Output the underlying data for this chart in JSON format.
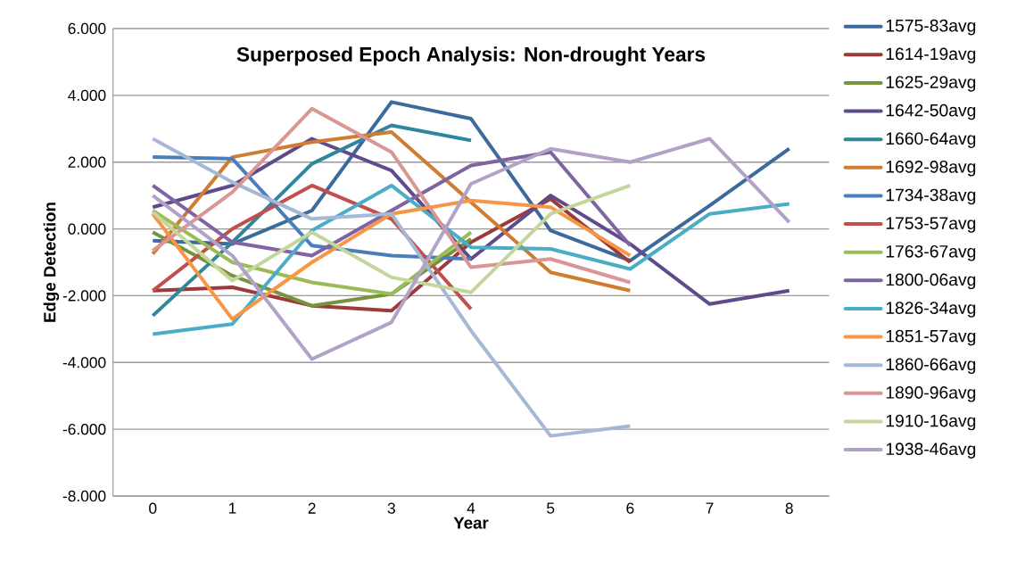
{
  "chart_data": {
    "type": "line",
    "title": "Superposed Epoch Analysis: Non-drought Years",
    "xlabel": "Year",
    "ylabel": "Edge Detection",
    "categories": [
      "0",
      "1",
      "2",
      "3",
      "4",
      "5",
      "6",
      "7",
      "8"
    ],
    "ylim": [
      -8,
      6
    ],
    "yticks": [
      {
        "value": -8,
        "label": "-8.000"
      },
      {
        "value": -6,
        "label": "-6.000"
      },
      {
        "value": -4,
        "label": "-4.000"
      },
      {
        "value": -2,
        "label": "-2.000"
      },
      {
        "value": 0,
        "label": "0.000"
      },
      {
        "value": 2,
        "label": "2.000"
      },
      {
        "value": 4,
        "label": "4.000"
      },
      {
        "value": 6,
        "label": "6.000"
      }
    ],
    "grid": "y",
    "legend": "right",
    "series": [
      {
        "name": "1575-83avg",
        "color": "#3d6a9c",
        "values": [
          -0.35,
          -0.45,
          0.55,
          3.8,
          3.3,
          -0.05,
          -0.95,
          0.7,
          2.4
        ]
      },
      {
        "name": "1614-19avg",
        "color": "#9b3b3a",
        "values": [
          -1.85,
          -1.75,
          -2.3,
          -2.45,
          -0.4,
          0.9,
          -1.0,
          null,
          null
        ]
      },
      {
        "name": "1625-29avg",
        "color": "#77933c",
        "values": [
          -0.1,
          -1.4,
          -2.3,
          -1.95,
          -0.3,
          null,
          null,
          null,
          null
        ]
      },
      {
        "name": "1642-50avg",
        "color": "#5f4b8b",
        "values": [
          0.65,
          1.3,
          2.7,
          1.75,
          -0.9,
          1.0,
          -0.45,
          -2.25,
          -1.85
        ]
      },
      {
        "name": "1660-64avg",
        "color": "#31859c",
        "values": [
          -2.6,
          -0.4,
          1.95,
          3.1,
          2.65,
          null,
          null,
          null,
          null
        ]
      },
      {
        "name": "1692-98avg",
        "color": "#d07d32",
        "values": [
          -0.75,
          2.15,
          2.6,
          2.9,
          0.8,
          -1.3,
          -1.85,
          null,
          null
        ]
      },
      {
        "name": "1734-38avg",
        "color": "#4a7ebb",
        "values": [
          2.15,
          2.1,
          -0.5,
          -0.8,
          -0.9,
          null,
          null,
          null,
          null
        ]
      },
      {
        "name": "1753-57avg",
        "color": "#c0504d",
        "values": [
          -1.85,
          0.0,
          1.3,
          0.3,
          -2.4,
          null,
          null,
          null,
          null
        ]
      },
      {
        "name": "1763-67avg",
        "color": "#9bbb59",
        "values": [
          0.55,
          -1.0,
          -1.6,
          -1.95,
          -0.1,
          null,
          null,
          null,
          null
        ]
      },
      {
        "name": "1800-06avg",
        "color": "#8064a2",
        "values": [
          1.3,
          -0.4,
          -0.8,
          0.55,
          1.9,
          2.3,
          -0.5,
          null,
          null
        ]
      },
      {
        "name": "1826-34avg",
        "color": "#4bacc6",
        "values": [
          -3.15,
          -2.85,
          -0.05,
          1.3,
          -0.55,
          -0.6,
          -1.2,
          0.45,
          0.75
        ]
      },
      {
        "name": "1851-57avg",
        "color": "#f79646",
        "values": [
          0.45,
          -2.7,
          -1.0,
          0.45,
          0.85,
          0.65,
          -0.8,
          null,
          null
        ]
      },
      {
        "name": "1860-66avg",
        "color": "#a5b8d6",
        "values": [
          2.7,
          1.4,
          0.3,
          0.45,
          -3.05,
          -6.2,
          -5.9,
          null,
          null
        ]
      },
      {
        "name": "1890-96avg",
        "color": "#d99694",
        "values": [
          -0.65,
          1.1,
          3.6,
          2.3,
          -1.15,
          -0.9,
          -1.6,
          null,
          null
        ]
      },
      {
        "name": "1910-16avg",
        "color": "#c3d69b",
        "values": [
          0.5,
          -1.55,
          -0.1,
          -1.45,
          -1.9,
          0.45,
          1.3,
          null,
          null
        ]
      },
      {
        "name": "1938-46avg",
        "color": "#b3a2c7",
        "values": [
          1.0,
          -0.8,
          -3.9,
          -2.8,
          1.35,
          2.4,
          2.0,
          2.7,
          0.2
        ]
      }
    ]
  }
}
